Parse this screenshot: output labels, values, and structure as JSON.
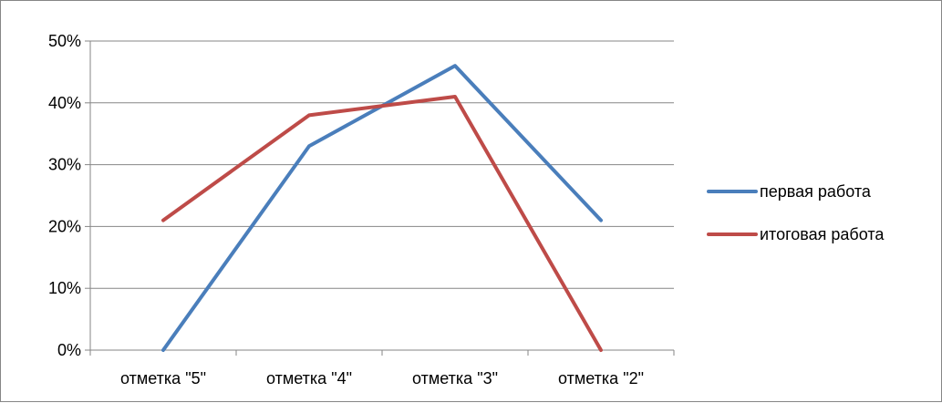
{
  "chart_data": {
    "type": "line",
    "categories": [
      "отметка \"5\"",
      "отметка \"4\"",
      "отметка \"3\"",
      "отметка \"2\""
    ],
    "series": [
      {
        "name": "первая работа",
        "values": [
          0,
          33,
          46,
          21
        ],
        "color": "#4a7ebb"
      },
      {
        "name": "итоговая работа",
        "values": [
          21,
          38,
          41,
          0
        ],
        "color": "#be4b48"
      }
    ],
    "ylim": [
      0,
      50
    ],
    "yticks": [
      0,
      10,
      20,
      30,
      40,
      50
    ],
    "ytick_suffix": "%",
    "grid": true,
    "legend_position": "right"
  }
}
